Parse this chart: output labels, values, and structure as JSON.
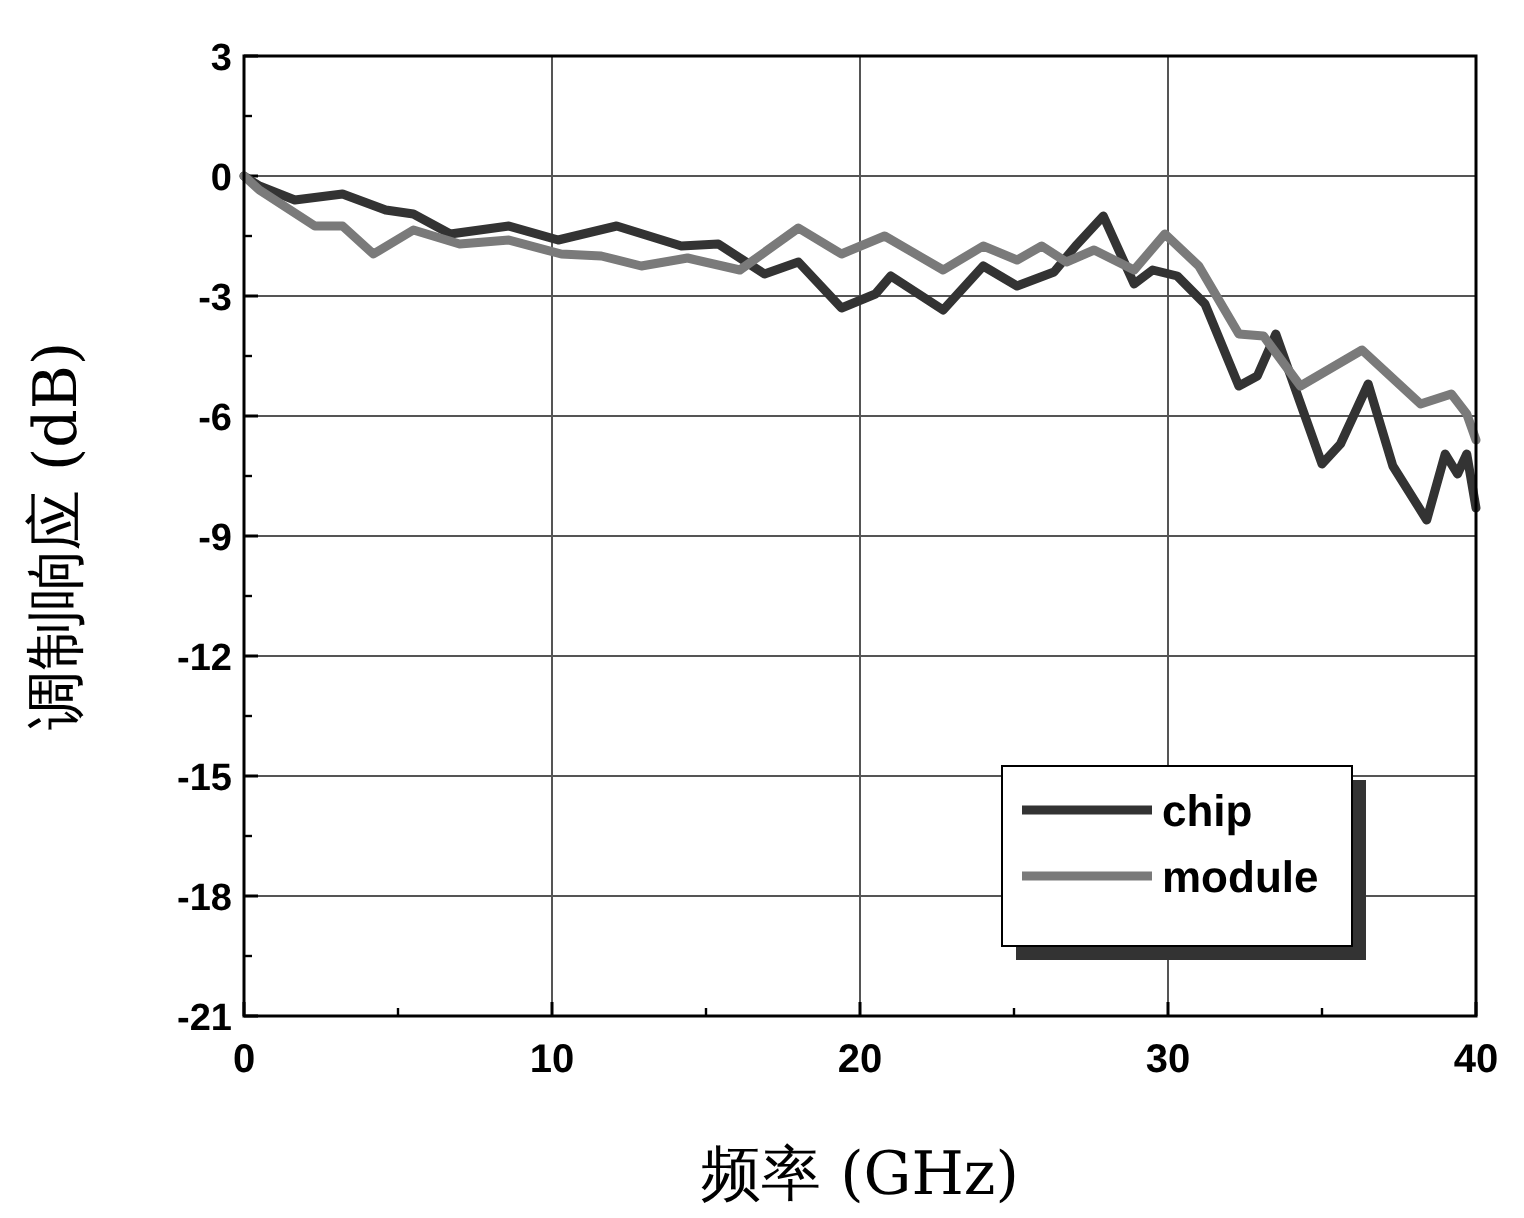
{
  "chart_data": {
    "type": "line",
    "xlabel": "频率 (GHz)",
    "ylabel": "调制响应 (dB)",
    "xlim": [
      0,
      40
    ],
    "xticks": [
      0,
      10,
      20,
      30,
      40
    ],
    "ylim": [
      -21,
      3
    ],
    "yticks": [
      -21,
      -18,
      -15,
      -12,
      -9,
      -6,
      -3,
      0,
      3
    ],
    "grid": true,
    "legend": "bottom right",
    "marker": "none",
    "line_style": "solid",
    "series": [
      {
        "name": "chip",
        "color": "#333333",
        "x": [
          0,
          0.5,
          1.65,
          3.2,
          4.6,
          5.5,
          6.7,
          8.6,
          10.2,
          12.1,
          14.2,
          15.4,
          16.9,
          18,
          19.4,
          20.5,
          21,
          22.7,
          24,
          25.1,
          26.3,
          27,
          27.9,
          28.9,
          29.5,
          30.3,
          31.2,
          32.3,
          32.9,
          33.5,
          35,
          35.6,
          36.5,
          37.3,
          38.4,
          39,
          39.4,
          39.7,
          40
        ],
        "values": [
          0,
          -0.25,
          -0.6,
          -0.45,
          -0.85,
          -0.95,
          -1.45,
          -1.25,
          -1.6,
          -1.25,
          -1.75,
          -1.7,
          -2.45,
          -2.15,
          -3.3,
          -2.95,
          -2.5,
          -3.35,
          -2.25,
          -2.75,
          -2.4,
          -1.75,
          -1,
          -2.7,
          -2.35,
          -2.5,
          -3.2,
          -5.25,
          -5,
          -3.95,
          -7.2,
          -6.7,
          -5.2,
          -7.25,
          -8.6,
          -6.95,
          -7.45,
          -6.95,
          -8.3
        ]
      },
      {
        "name": "module",
        "color": "#7a7a7a",
        "x": [
          0,
          0.5,
          2.3,
          3.2,
          4.2,
          5.5,
          7,
          8.6,
          10.3,
          11.6,
          12.9,
          14.4,
          16.1,
          18,
          19.4,
          20.8,
          22.7,
          24,
          25.1,
          25.9,
          26.7,
          27.6,
          28.9,
          29.9,
          31,
          32.3,
          33.1,
          34.3,
          36.3,
          38.2,
          39.2,
          39.7,
          40
        ],
        "values": [
          0,
          -0.35,
          -1.25,
          -1.25,
          -1.95,
          -1.35,
          -1.7,
          -1.6,
          -1.95,
          -2,
          -2.25,
          -2.05,
          -2.35,
          -1.3,
          -1.95,
          -1.5,
          -2.35,
          -1.75,
          -2.1,
          -1.75,
          -2.15,
          -1.85,
          -2.35,
          -1.45,
          -2.25,
          -3.95,
          -4,
          -5.25,
          -4.35,
          -5.7,
          -5.45,
          -5.95,
          -6.6
        ]
      }
    ]
  }
}
